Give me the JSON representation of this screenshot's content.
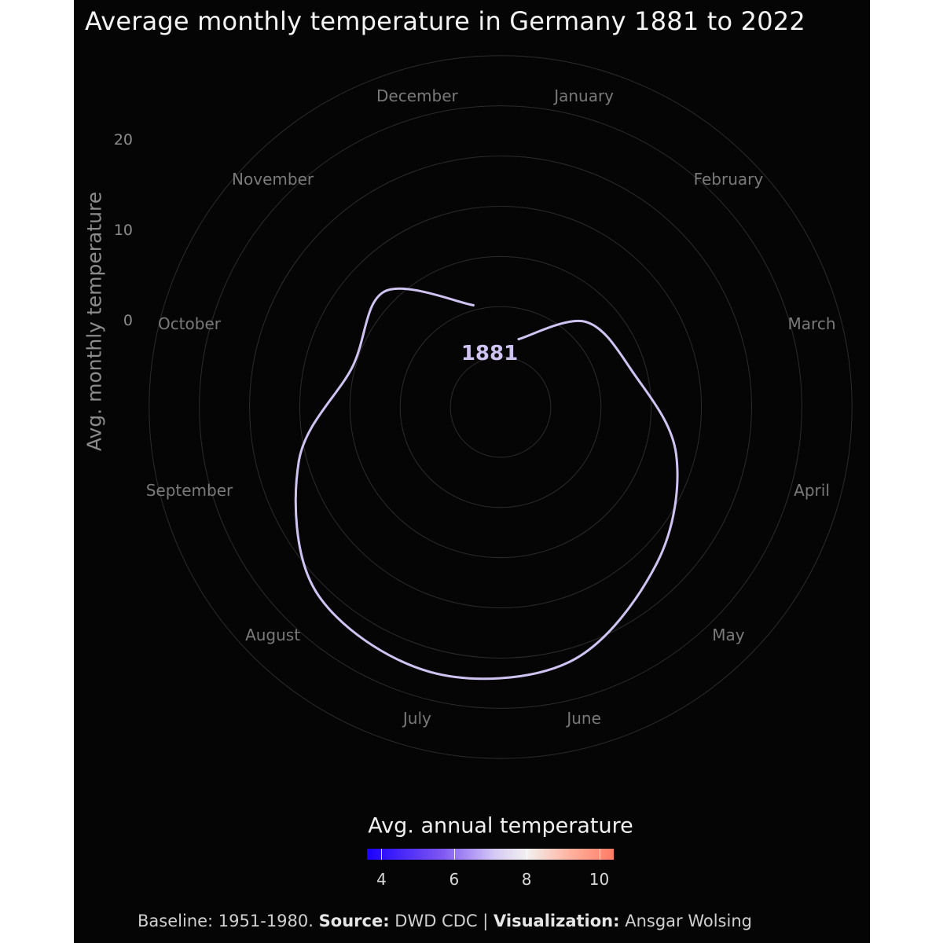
{
  "chart_data": {
    "type": "line",
    "title": "Average monthly temperature in Germany 1881 to 2022",
    "ylabel": "Avg. monthly temperature",
    "coordinate_system": "polar",
    "y_ticks": [
      "0",
      "10",
      "20"
    ],
    "ylim": [
      -10,
      26
    ],
    "categories": [
      "January",
      "February",
      "March",
      "April",
      "May",
      "June",
      "July",
      "August",
      "September",
      "October",
      "November",
      "December"
    ],
    "series": [
      {
        "values": [
          -3.0,
          2.0,
          3.6,
          8.1,
          12.0,
          16.3,
          17.3,
          16.0,
          10.8,
          5.3,
          6.3,
          0.5
        ],
        "color": "#cfc3f2"
      }
    ],
    "year_label": "1881",
    "legend": {
      "title": "Avg. annual temperature",
      "ticks": [
        "4",
        "6",
        "8",
        "10"
      ],
      "range": [
        3.6,
        10.4
      ],
      "colors": [
        "#1a00ff",
        "#d6cbf5",
        "#f2f0ef",
        "#ff7b64"
      ],
      "placement": "bottom"
    },
    "caption": {
      "baseline": "Baseline: 1951-1980.",
      "source_label": "Source:",
      "source": "DWD CDC",
      "separator": "|",
      "viz_label": "Visualization:",
      "viz": "Ansgar Wolsing"
    }
  }
}
